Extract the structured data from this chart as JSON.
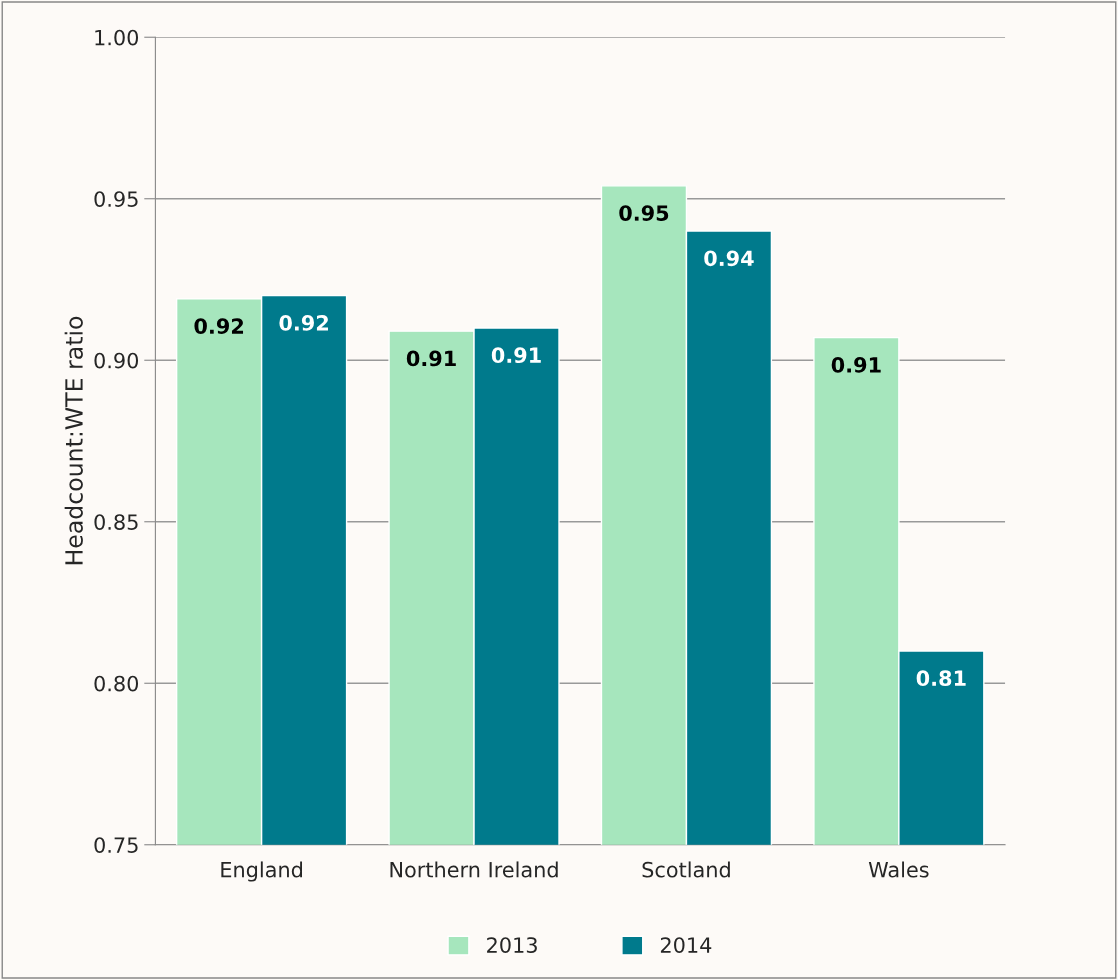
{
  "chart_data": {
    "type": "bar",
    "ylabel": "Headcount:WTE ratio",
    "categories": [
      "England",
      "Northern Ireland",
      "Scotland",
      "Wales"
    ],
    "series": [
      {
        "name": "2013",
        "color": "#a6e6bd",
        "values": [
          0.919,
          0.909,
          0.954,
          0.907
        ],
        "value_labels": [
          "0.92",
          "0.91",
          "0.95",
          "0.91"
        ]
      },
      {
        "name": "2014",
        "color": "#007a8c",
        "values": [
          0.92,
          0.91,
          0.94,
          0.81
        ],
        "value_labels": [
          "0.92",
          "0.91",
          "0.94",
          "0.81"
        ]
      }
    ],
    "ylim": [
      0.75,
      1.0
    ],
    "yticks": [
      "0.75",
      "0.80",
      "0.85",
      "0.90",
      "0.95",
      "1.00"
    ],
    "grid": "y",
    "legend": "bottom"
  }
}
